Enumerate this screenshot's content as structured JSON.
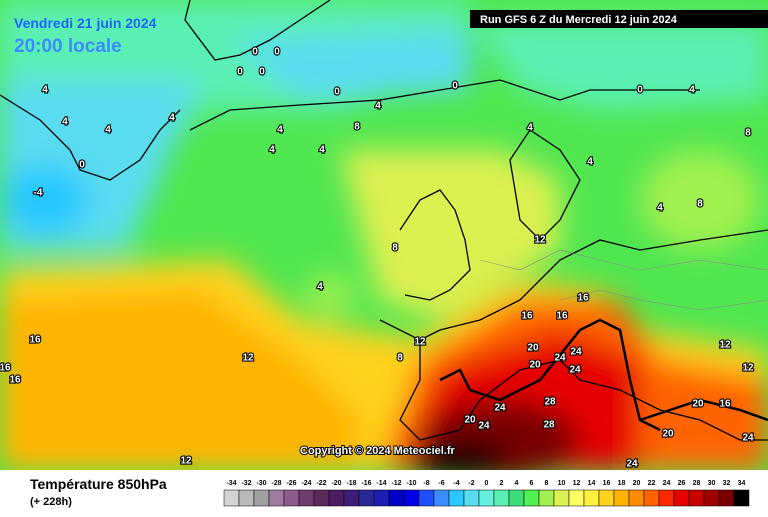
{
  "header": {
    "date": "Vendredi 21 juin 2024",
    "time": "20:00 locale",
    "run": "Run GFS 6 Z du Mercredi 12 juin 2024"
  },
  "copyright": "Copyright © 2024 Meteociel.fr",
  "footer": {
    "title": "Température 850hPa",
    "subtitle": "(+ 228h)"
  },
  "colorbar": {
    "ticks": [
      -34,
      -32,
      -30,
      -28,
      -26,
      -24,
      -22,
      -20,
      -18,
      -16,
      -14,
      -12,
      -10,
      -8,
      -6,
      -4,
      -2,
      0,
      2,
      4,
      6,
      8,
      10,
      12,
      14,
      16,
      18,
      20,
      22,
      24,
      26,
      28,
      30,
      32,
      34
    ],
    "colors": [
      "#d2d2d2",
      "#b9b9b9",
      "#a0a0a0",
      "#a07aa0",
      "#8c5a8c",
      "#6e3c6e",
      "#5a2a5a",
      "#4b1e64",
      "#3c1e78",
      "#282896",
      "#1e1eb4",
      "#0000c8",
      "#0000e6",
      "#1e50ff",
      "#3c8cff",
      "#28c8ff",
      "#5adcf0",
      "#64f0dc",
      "#5af0b4",
      "#3cdc78",
      "#50f050",
      "#a0f050",
      "#dcf050",
      "#ffff64",
      "#fff03c",
      "#ffd21e",
      "#ffb400",
      "#ff8c00",
      "#ff6400",
      "#ff2800",
      "#e60000",
      "#c80000",
      "#a00000",
      "#780000",
      "#000000"
    ]
  },
  "contour_labels": [
    "0",
    "0",
    "0",
    "0",
    "0",
    "0",
    "0",
    "0",
    "-4",
    "4",
    "4",
    "4",
    "4",
    "4",
    "4",
    "4",
    "4",
    "4",
    "4",
    "4",
    "4",
    "4",
    "8",
    "8",
    "8",
    "8",
    "8",
    "12",
    "12",
    "12",
    "12",
    "12",
    "12",
    "16",
    "16",
    "16",
    "16",
    "16",
    "16",
    "16",
    "20",
    "20",
    "20",
    "20",
    "20",
    "24",
    "24",
    "24",
    "24",
    "24",
    "24",
    "24",
    "28",
    "28"
  ]
}
